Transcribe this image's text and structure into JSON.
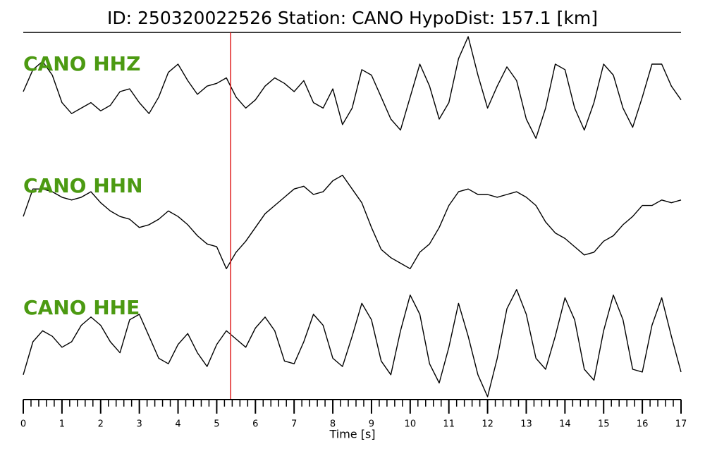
{
  "chart_data": {
    "type": "line",
    "title": "ID: 250320022526   Station: CANO   HypoDist:   157.1 [km]",
    "x_label": "Time [s]",
    "x": [
      0,
      0.25,
      0.5,
      0.75,
      1,
      1.25,
      1.5,
      1.75,
      2,
      2.25,
      2.5,
      2.75,
      3,
      3.25,
      3.5,
      3.75,
      4,
      4.25,
      4.5,
      4.75,
      5,
      5.25,
      5.5,
      5.75,
      6,
      6.25,
      6.5,
      6.75,
      7,
      7.25,
      7.5,
      7.75,
      8,
      8.25,
      8.5,
      8.75,
      9,
      9.25,
      9.5,
      9.75,
      10,
      10.25,
      10.5,
      10.75,
      11,
      11.25,
      11.5,
      11.75,
      12,
      12.25,
      12.5,
      12.75,
      13,
      13.25,
      13.5,
      13.75,
      14,
      14.25,
      14.5,
      14.75,
      15,
      15.25,
      15.5,
      15.75,
      16,
      16.25,
      16.5,
      16.75,
      17
    ],
    "series": [
      {
        "name": "CANO HHZ",
        "color": "#000000",
        "values": [
          0,
          0.4,
          0.55,
          0.3,
          -0.2,
          -0.4,
          -0.3,
          -0.2,
          -0.35,
          -0.25,
          0,
          0.05,
          -0.2,
          -0.4,
          -0.1,
          0.35,
          0.5,
          0.2,
          -0.05,
          0.1,
          0.15,
          0.25,
          -0.1,
          -0.3,
          -0.15,
          0.1,
          0.25,
          0.15,
          0,
          0.2,
          -0.2,
          -0.3,
          0.05,
          -0.6,
          -0.3,
          0.4,
          0.3,
          -0.1,
          -0.5,
          -0.7,
          -0.1,
          0.5,
          0.1,
          -0.5,
          -0.2,
          0.6,
          1,
          0.3,
          -0.3,
          0.1,
          0.45,
          0.2,
          -0.5,
          -0.85,
          -0.3,
          0.5,
          0.4,
          -0.3,
          -0.7,
          -0.2,
          0.5,
          0.3,
          -0.3,
          -0.65,
          -0.1,
          0.5,
          0.5,
          0.1,
          -0.15
        ]
      },
      {
        "name": "CANO HHN",
        "color": "#000000",
        "values": [
          0.1,
          0.6,
          0.6,
          0.55,
          0.45,
          0.4,
          0.45,
          0.55,
          0.35,
          0.2,
          0.1,
          0.05,
          -0.1,
          -0.05,
          0.05,
          0.2,
          0.1,
          -0.05,
          -0.25,
          -0.4,
          -0.45,
          -0.85,
          -0.55,
          -0.35,
          -0.1,
          0.15,
          0.3,
          0.45,
          0.6,
          0.65,
          0.5,
          0.55,
          0.75,
          0.85,
          0.6,
          0.35,
          -0.1,
          -0.5,
          -0.65,
          -0.75,
          -0.85,
          -0.55,
          -0.4,
          -0.1,
          0.3,
          0.55,
          0.6,
          0.5,
          0.5,
          0.45,
          0.5,
          0.55,
          0.45,
          0.3,
          0,
          -0.2,
          -0.3,
          -0.45,
          -0.6,
          -0.55,
          -0.35,
          -0.25,
          -0.05,
          0.1,
          0.3,
          0.3,
          0.4,
          0.35,
          0.4
        ]
      },
      {
        "name": "CANO HHE",
        "color": "#000000",
        "values": [
          -0.6,
          0,
          0.2,
          0.1,
          -0.1,
          0,
          0.3,
          0.45,
          0.3,
          0,
          -0.2,
          0.4,
          0.5,
          0.1,
          -0.3,
          -0.4,
          -0.05,
          0.15,
          -0.2,
          -0.45,
          -0.05,
          0.2,
          0.05,
          -0.1,
          0.25,
          0.45,
          0.2,
          -0.35,
          -0.4,
          0,
          0.5,
          0.3,
          -0.3,
          -0.45,
          0.1,
          0.7,
          0.4,
          -0.35,
          -0.6,
          0.2,
          0.85,
          0.5,
          -0.4,
          -0.75,
          -0.1,
          0.7,
          0.1,
          -0.6,
          -1,
          -0.3,
          0.6,
          0.95,
          0.5,
          -0.3,
          -0.5,
          0.1,
          0.8,
          0.4,
          -0.5,
          -0.7,
          0.2,
          0.85,
          0.4,
          -0.5,
          -0.55,
          0.3,
          0.8,
          0.1,
          -0.55
        ]
      }
    ],
    "label_color": "#4c9a12",
    "xlim": [
      0,
      17
    ],
    "xticks": [
      0,
      1,
      2,
      3,
      4,
      5,
      6,
      7,
      8,
      9,
      10,
      11,
      12,
      13,
      14,
      15,
      16,
      17
    ],
    "minor_tick_step": 0.2,
    "ylim": [
      -1,
      1
    ],
    "pick_time": 5.36,
    "pick_color": "#e02020"
  }
}
